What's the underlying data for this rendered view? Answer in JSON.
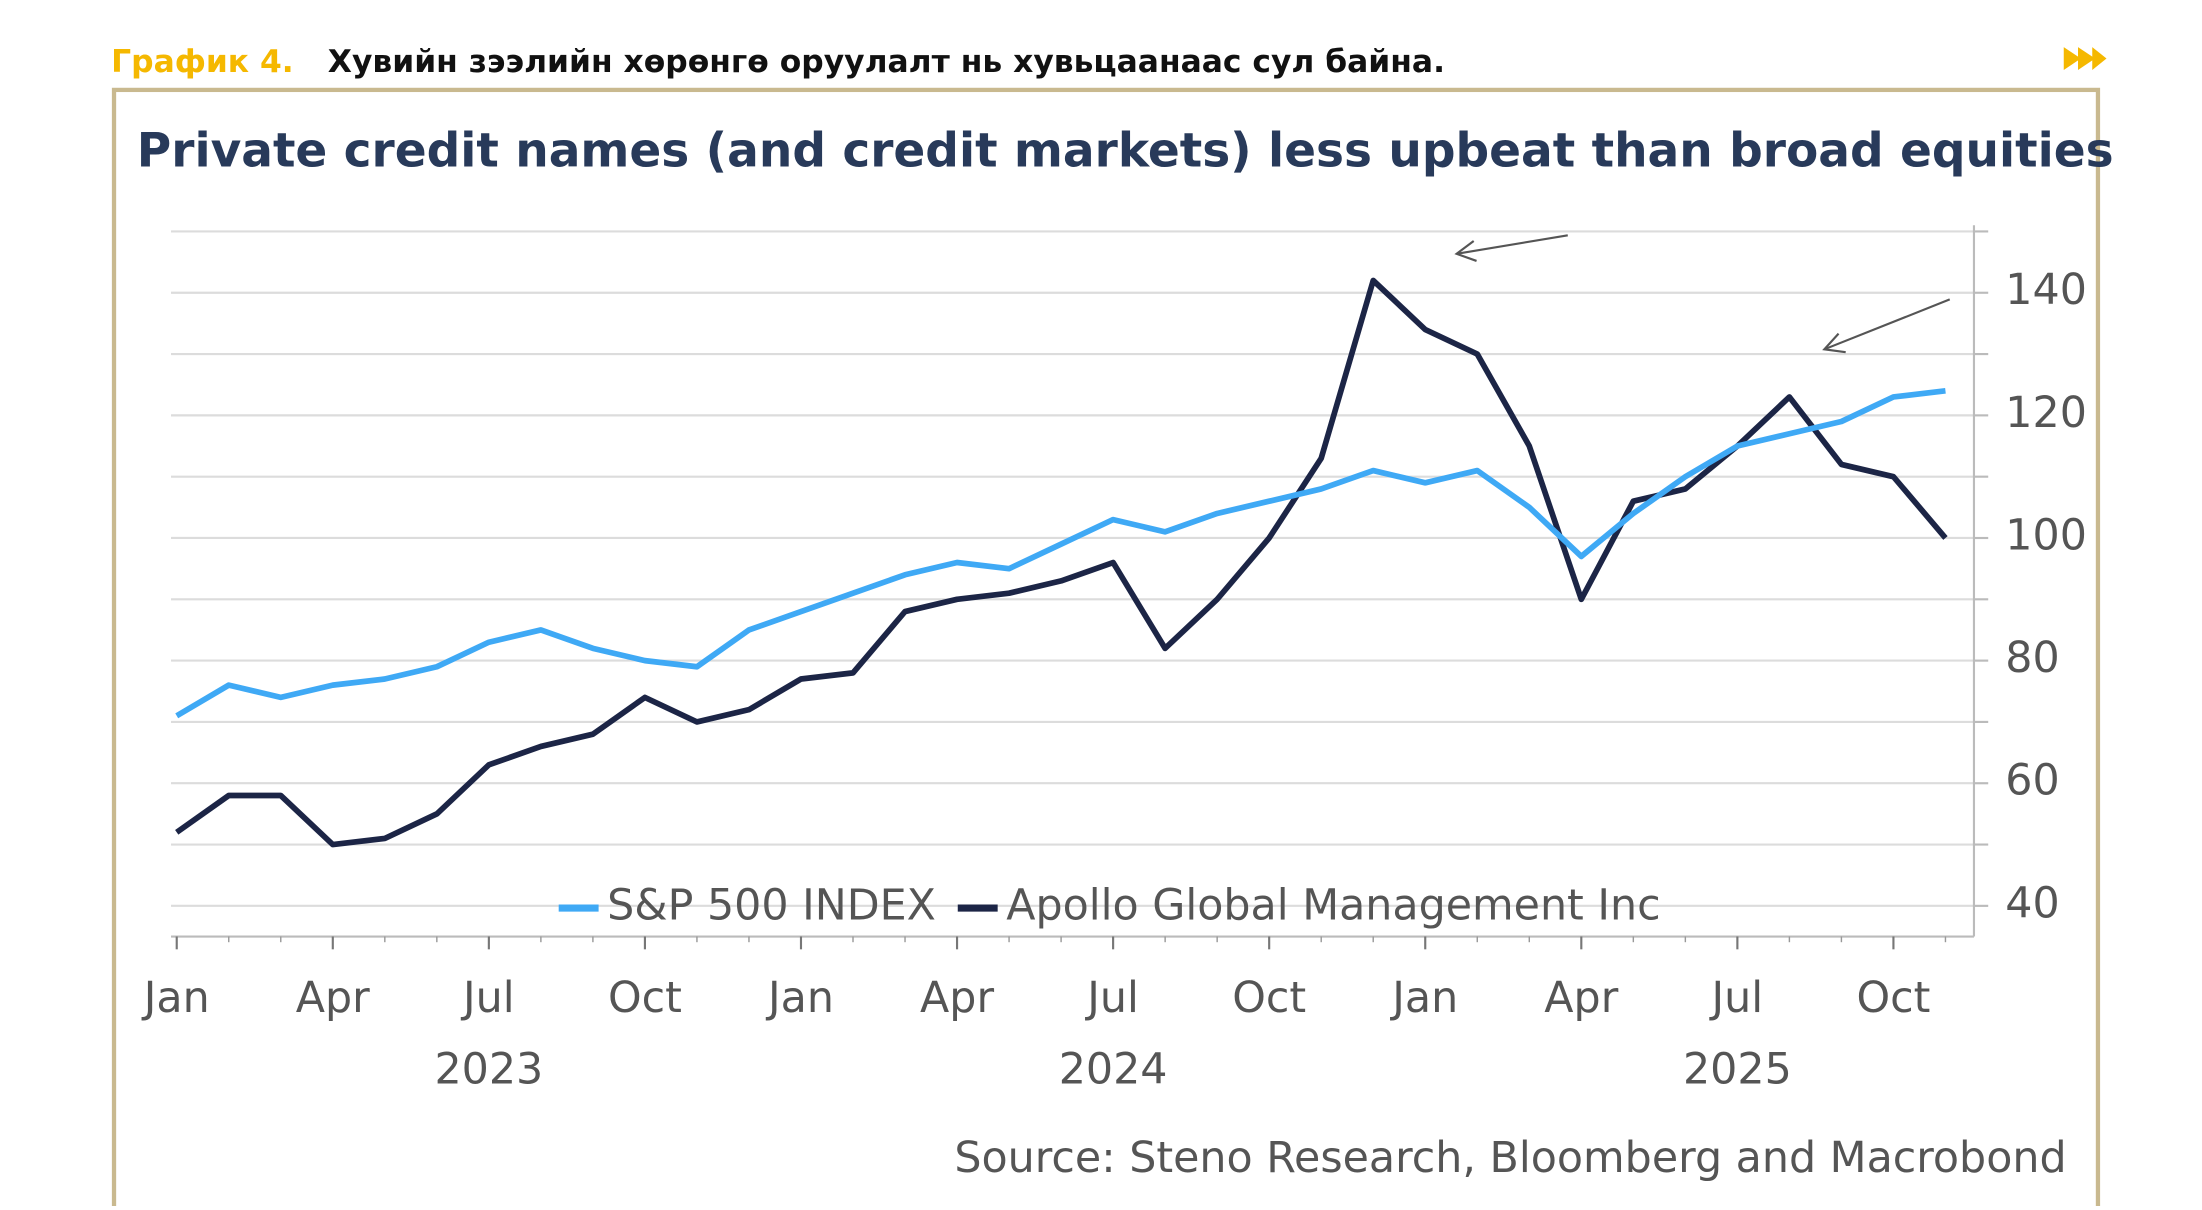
{
  "header": {
    "label": "График 4.",
    "title": "Хувийн зээлийн хөрөнгө оруулалт нь хувьцаанаас сул байна."
  },
  "chart_data": {
    "type": "line",
    "title": "Private credit names (and credit markets) less upbeat than broad equities",
    "source": "Source: Steno Research, Bloomberg and Macrobond",
    "x": [
      "2023-01",
      "2023-02",
      "2023-03",
      "2023-04",
      "2023-05",
      "2023-06",
      "2023-07",
      "2023-08",
      "2023-09",
      "2023-10",
      "2023-11",
      "2023-12",
      "2024-01",
      "2024-02",
      "2024-03",
      "2024-04",
      "2024-05",
      "2024-06",
      "2024-07",
      "2024-08",
      "2024-09",
      "2024-10",
      "2024-11",
      "2024-12",
      "2025-01",
      "2025-02",
      "2025-03",
      "2025-04",
      "2025-05",
      "2025-06",
      "2025-07",
      "2025-08",
      "2025-09",
      "2025-10",
      "2025-11"
    ],
    "series": [
      {
        "name": "S&P 500 INDEX",
        "color": "#3fa9f5",
        "values": [
          71,
          76,
          74,
          76,
          77,
          79,
          83,
          85,
          82,
          80,
          79,
          85,
          88,
          91,
          94,
          96,
          95,
          99,
          103,
          101,
          104,
          106,
          108,
          111,
          109,
          111,
          105,
          97,
          104,
          110,
          115,
          117,
          119,
          123,
          124
        ]
      },
      {
        "name": "Apollo Global Management Inc",
        "color": "#1c2546",
        "values": [
          52,
          58,
          58,
          50,
          51,
          55,
          63,
          66,
          68,
          74,
          70,
          72,
          77,
          78,
          88,
          90,
          91,
          93,
          96,
          82,
          90,
          100,
          113,
          142,
          134,
          130,
          115,
          90,
          106,
          108,
          115,
          123,
          112,
          110,
          100
        ]
      }
    ],
    "xticks": [
      {
        "value": "2023-01",
        "label": "Jan"
      },
      {
        "value": "2023-04",
        "label": "Apr"
      },
      {
        "value": "2023-07",
        "label": "Jul"
      },
      {
        "value": "2023-10",
        "label": "Oct"
      },
      {
        "value": "2024-01",
        "label": "Jan"
      },
      {
        "value": "2024-04",
        "label": "Apr"
      },
      {
        "value": "2024-07",
        "label": "Jul"
      },
      {
        "value": "2024-10",
        "label": "Oct"
      },
      {
        "value": "2025-01",
        "label": "Jan"
      },
      {
        "value": "2025-04",
        "label": "Apr"
      },
      {
        "value": "2025-07",
        "label": "Jul"
      },
      {
        "value": "2025-10",
        "label": "Oct"
      }
    ],
    "year_labels": [
      {
        "value": "2023-07",
        "label": "2023"
      },
      {
        "value": "2024-07",
        "label": "2024"
      },
      {
        "value": "2025-07",
        "label": "2025"
      }
    ],
    "ylim": [
      35,
      151
    ],
    "yticks": [
      40,
      60,
      80,
      100,
      120,
      140
    ],
    "yminor": [
      50,
      70,
      90,
      110,
      130,
      150
    ],
    "grid": true,
    "legend": "bottom"
  }
}
